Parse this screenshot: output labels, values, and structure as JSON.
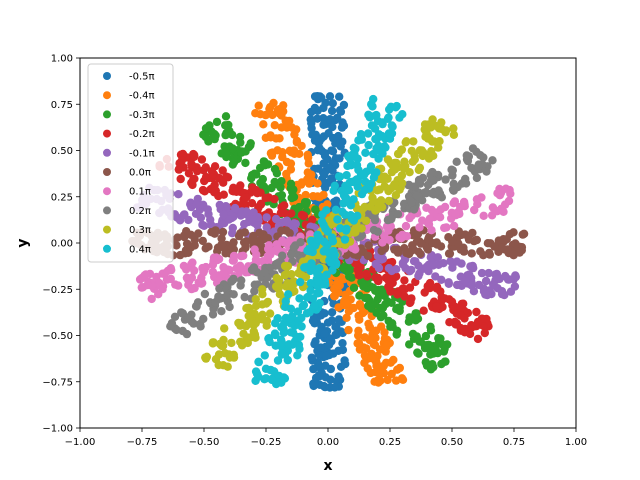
{
  "chart_data": {
    "type": "scatter",
    "title": "",
    "xlabel": "x",
    "ylabel": "y",
    "xlim": [
      -1.0,
      1.0
    ],
    "ylim": [
      -1.0,
      1.0
    ],
    "xticks": [
      "−1.00",
      "−0.75",
      "−0.50",
      "−0.25",
      "0.00",
      "0.25",
      "0.50",
      "0.75",
      "1.00"
    ],
    "yticks": [
      "−1.00",
      "−0.75",
      "−0.50",
      "−0.25",
      "0.00",
      "0.25",
      "0.50",
      "0.75",
      "1.00"
    ],
    "grid": false,
    "legend_position": "top-left",
    "marker": "circle",
    "disk_radius": 0.8,
    "band_half_width": 0.07,
    "series": [
      {
        "name": "-0.5π",
        "angle_pi": -0.5,
        "color": "#1f77b4"
      },
      {
        "name": "-0.4π",
        "angle_pi": -0.4,
        "color": "#ff7f0e"
      },
      {
        "name": "-0.3π",
        "angle_pi": -0.3,
        "color": "#2ca02c"
      },
      {
        "name": "-0.2π",
        "angle_pi": -0.2,
        "color": "#d62728"
      },
      {
        "name": "-0.1π",
        "angle_pi": -0.1,
        "color": "#9467bd"
      },
      {
        "name": "0.0π",
        "angle_pi": 0.0,
        "color": "#8c564b"
      },
      {
        "name": "0.1π",
        "angle_pi": 0.1,
        "color": "#e377c2"
      },
      {
        "name": "0.2π",
        "angle_pi": 0.2,
        "color": "#7f7f7f"
      },
      {
        "name": "0.3π",
        "angle_pi": 0.3,
        "color": "#bcbd22"
      },
      {
        "name": "0.4π",
        "angle_pi": 0.4,
        "color": "#17becf"
      }
    ]
  }
}
